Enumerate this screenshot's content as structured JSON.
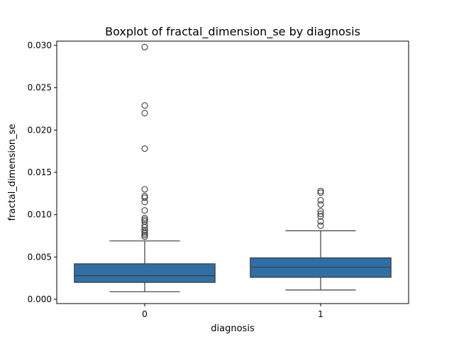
{
  "chart_data": {
    "type": "box",
    "title": "Boxplot of fractal_dimension_se by diagnosis",
    "xlabel": "diagnosis",
    "ylabel": "fractal_dimension_se",
    "categories": [
      "0",
      "1"
    ],
    "ylim": [
      -0.0005,
      0.0305
    ],
    "yticks": [
      0.0,
      0.005,
      0.01,
      0.015,
      0.02,
      0.025,
      0.03
    ],
    "ytick_labels": [
      "0.000",
      "0.005",
      "0.010",
      "0.015",
      "0.020",
      "0.025",
      "0.030"
    ],
    "grid": false,
    "box_color": "#2f6fa5",
    "series": [
      {
        "category": "0",
        "whisker_low": 0.0009,
        "q1": 0.002,
        "median": 0.0028,
        "q3": 0.0042,
        "whisker_high": 0.0069,
        "outliers": [
          0.0298,
          0.0229,
          0.022,
          0.0178,
          0.013,
          0.0122,
          0.012,
          0.0115,
          0.0105,
          0.0096,
          0.0094,
          0.0092,
          0.0088,
          0.0085,
          0.0082,
          0.008,
          0.0078,
          0.0076,
          0.0074
        ]
      },
      {
        "category": "1",
        "whisker_low": 0.0011,
        "q1": 0.0026,
        "median": 0.0038,
        "q3": 0.0049,
        "whisker_high": 0.0081,
        "outliers": [
          0.0128,
          0.0126,
          0.0117,
          0.0112,
          0.0104,
          0.0101,
          0.0098,
          0.0092,
          0.0087
        ]
      }
    ]
  }
}
